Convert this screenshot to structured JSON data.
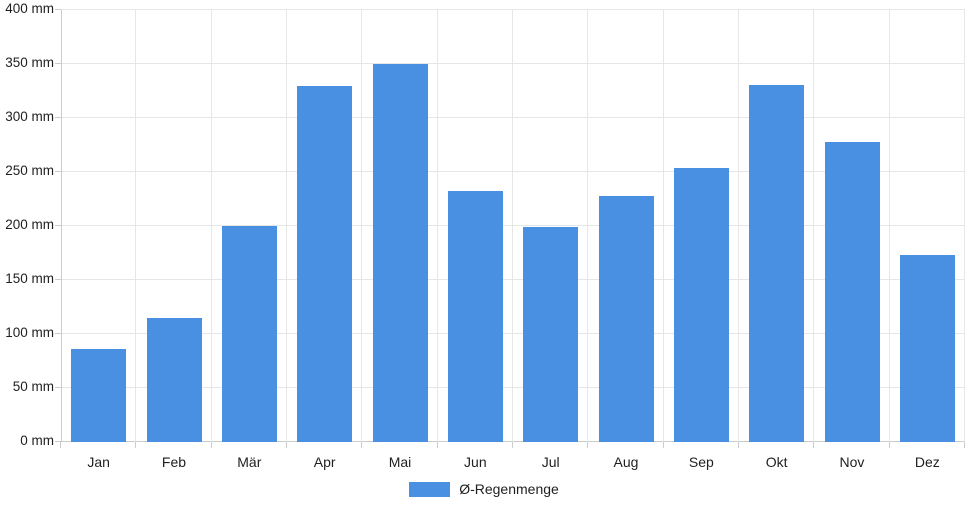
{
  "chart_data": {
    "type": "bar",
    "title": "",
    "categories": [
      "Jan",
      "Feb",
      "Mär",
      "Apr",
      "Mai",
      "Jun",
      "Jul",
      "Aug",
      "Sep",
      "Okt",
      "Nov",
      "Dez"
    ],
    "series": [
      {
        "name": "Ø-Regenmenge",
        "values": [
          86,
          115,
          200,
          330,
          350,
          232,
          199,
          228,
          254,
          331,
          278,
          173
        ]
      }
    ],
    "xlabel": "",
    "ylabel": "",
    "ylim": [
      0,
      400
    ],
    "ytick_step": 50,
    "ytick_labels": [
      "0 mm",
      "50 mm",
      "100 mm",
      "150 mm",
      "200 mm",
      "250 mm",
      "300 mm",
      "350 mm",
      "400 mm"
    ],
    "unit": "mm",
    "grid": true,
    "legend_position": "bottom",
    "colors": {
      "bar": "#4a90e2",
      "gridline": "#e6e6e6",
      "axis": "#cccccc",
      "text": "#1f1f1f",
      "background": "#ffffff"
    }
  }
}
